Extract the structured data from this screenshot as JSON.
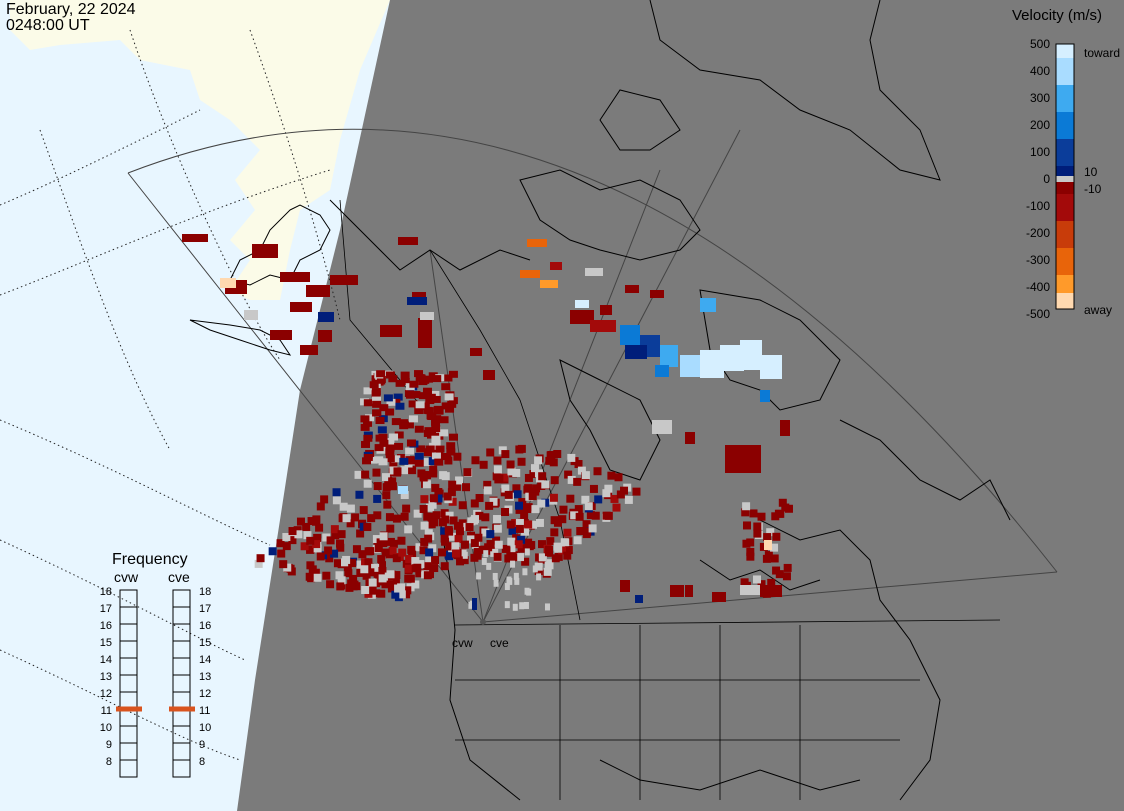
{
  "header": {
    "date": "February, 22 2024",
    "time": "0248:00 UT"
  },
  "legend": {
    "title": "Velocity (m/s)",
    "ticks": [
      "500",
      "400",
      "300",
      "200",
      "100",
      "0",
      "-100",
      "-200",
      "-300",
      "-400",
      "-500"
    ],
    "label_toward": "toward",
    "label_away": "away",
    "mark_pos": "10",
    "mark_neg": "-10",
    "colors": {
      "toward_500": "#d6efff",
      "toward_400": "#a9dcff",
      "toward_300": "#3eaaf0",
      "toward_200": "#0b7ad6",
      "toward_100": "#0b3d9a",
      "toward_low": "#001e7a",
      "near_zero": "#c8c8c8",
      "away_low": "#8b0000",
      "away_100": "#a30a0a",
      "away_200": "#c83c0a",
      "away_300": "#e8640a",
      "away_400": "#ff9a2a",
      "away_500": "#ffd9b0"
    }
  },
  "frequency": {
    "title": "Frequency",
    "radar_left": "cvw",
    "radar_right": "cve",
    "scale": [
      "18",
      "17",
      "16",
      "15",
      "14",
      "13",
      "12",
      "11",
      "10",
      "9",
      "8"
    ],
    "current_mhz": 11.0,
    "marker_color": "#d9531e"
  },
  "map": {
    "site_labels": [
      "cvw",
      "cve"
    ],
    "ocean_color": "#e8f6ff",
    "night_color": "#7b7b7b",
    "land_day_color": "#fbfbe8"
  }
}
